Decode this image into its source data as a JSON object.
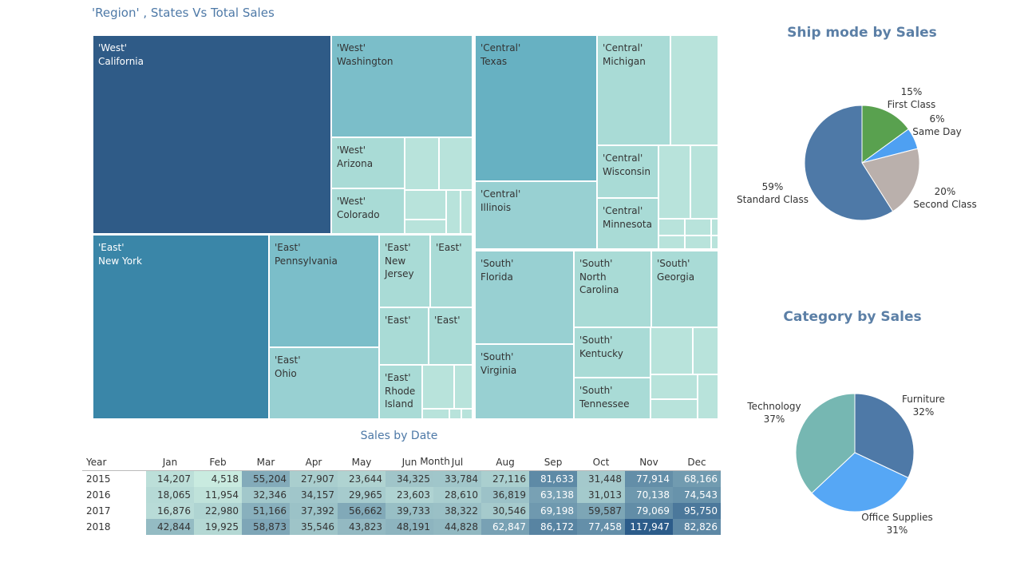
{
  "treemap": {
    "title": "'Region' , States Vs Total Sales",
    "colors": {
      "dark": "#2f5b87",
      "mid": "#3a86a8",
      "teal": "#67b1c2",
      "med": "#7bbec9",
      "light": "#98d0d2",
      "pale": "#a9dbd6",
      "palest": "#b8e3db"
    },
    "cells": [
      {
        "region": "'West'",
        "state": "California",
        "shade": "dark"
      },
      {
        "region": "'West'",
        "state": "Washington",
        "shade": "med"
      },
      {
        "region": "'West'",
        "state": "Arizona",
        "shade": "pale"
      },
      {
        "region": "'West'",
        "state": "Colorado",
        "shade": "pale"
      },
      {
        "region": "'East'",
        "state": "New York",
        "shade": "mid"
      },
      {
        "region": "'East'",
        "state": "Pennsylvania",
        "shade": "med"
      },
      {
        "region": "'East'",
        "state": "Ohio",
        "shade": "light"
      },
      {
        "region": "'East'",
        "state": "New\nJersey",
        "shade": "pale"
      },
      {
        "region": "'East'",
        "state": "",
        "shade": "pale"
      },
      {
        "region": "'East'",
        "state": "",
        "shade": "pale"
      },
      {
        "region": "'East'",
        "state": "",
        "shade": "pale"
      },
      {
        "region": "'East'",
        "state": "Rhode\nIsland",
        "shade": "pale"
      },
      {
        "region": "'Central'",
        "state": "Texas",
        "shade": "teal"
      },
      {
        "region": "'Central'",
        "state": "Illinois",
        "shade": "light"
      },
      {
        "region": "'Central'",
        "state": "Michigan",
        "shade": "pale"
      },
      {
        "region": "'Central'",
        "state": "Wisconsin",
        "shade": "pale"
      },
      {
        "region": "'Central'",
        "state": "Minnesota",
        "shade": "pale"
      },
      {
        "region": "'South'",
        "state": "Florida",
        "shade": "light"
      },
      {
        "region": "'South'",
        "state": "Virginia",
        "shade": "light"
      },
      {
        "region": "'South'",
        "state": "North\nCarolina",
        "shade": "pale"
      },
      {
        "region": "'South'",
        "state": "Georgia",
        "shade": "pale"
      },
      {
        "region": "'South'",
        "state": "Kentucky",
        "shade": "pale"
      },
      {
        "region": "'South'",
        "state": "Tennessee",
        "shade": "pale"
      }
    ]
  },
  "ship_mode": {
    "title": "Ship mode by Sales",
    "slices": [
      {
        "name": "First Class",
        "pct": 15,
        "label": "15%",
        "color": "#59a14f"
      },
      {
        "name": "Same Day",
        "pct": 6,
        "label": "6%",
        "color": "#4ea0f2"
      },
      {
        "name": "Second Class",
        "pct": 20,
        "label": "20%",
        "color": "#bab0ac"
      },
      {
        "name": "Standard Class",
        "pct": 59,
        "label": "59%",
        "color": "#4e79a7"
      }
    ]
  },
  "category": {
    "title": "Category by  Sales",
    "slices": [
      {
        "name": "Furniture",
        "pct": 32,
        "label": "32%",
        "color": "#4e79a7"
      },
      {
        "name": "Office Supplies",
        "pct": 31,
        "label": "31%",
        "color": "#56a7f5"
      },
      {
        "name": "Technology",
        "pct": 37,
        "label": "37%",
        "color": "#76b7b2"
      }
    ]
  },
  "heatmap": {
    "title": "Sales by Date",
    "column_header": "Month",
    "row_header": "Year",
    "months": [
      "Jan",
      "Feb",
      "Mar",
      "Apr",
      "May",
      "Jun",
      "Jul",
      "Aug",
      "Sep",
      "Oct",
      "Nov",
      "Dec"
    ],
    "rows": [
      {
        "year": "2015",
        "values": [
          14207,
          4518,
          55204,
          27907,
          23644,
          34325,
          33784,
          27116,
          81633,
          31448,
          77914,
          68166
        ]
      },
      {
        "year": "2016",
        "values": [
          18065,
          11954,
          32346,
          34157,
          29965,
          23603,
          28610,
          36819,
          63138,
          31013,
          70138,
          74543
        ]
      },
      {
        "year": "2017",
        "values": [
          16876,
          22980,
          51166,
          37392,
          56662,
          39733,
          38322,
          30546,
          69198,
          59587,
          79069,
          95750
        ]
      },
      {
        "year": "2018",
        "values": [
          42844,
          19925,
          58873,
          35546,
          43823,
          48191,
          44828,
          62847,
          86172,
          77458,
          117947,
          82826
        ]
      }
    ],
    "color_low": "#c9ebe0",
    "color_high": "#2c5c8a"
  },
  "chart_data": [
    {
      "type": "heatmap",
      "title": "Sales by Date",
      "xlabel": "Month",
      "ylabel": "Year",
      "x": [
        "Jan",
        "Feb",
        "Mar",
        "Apr",
        "May",
        "Jun",
        "Jul",
        "Aug",
        "Sep",
        "Oct",
        "Nov",
        "Dec"
      ],
      "y": [
        "2015",
        "2016",
        "2017",
        "2018"
      ],
      "values": [
        [
          14207,
          4518,
          55204,
          27907,
          23644,
          34325,
          33784,
          27116,
          81633,
          31448,
          77914,
          68166
        ],
        [
          18065,
          11954,
          32346,
          34157,
          29965,
          23603,
          28610,
          36819,
          63138,
          31013,
          70138,
          74543
        ],
        [
          16876,
          22980,
          51166,
          37392,
          56662,
          39733,
          38322,
          30546,
          69198,
          59587,
          79069,
          95750
        ],
        [
          42844,
          19925,
          58873,
          35546,
          43823,
          48191,
          44828,
          62847,
          86172,
          77458,
          117947,
          82826
        ]
      ]
    },
    {
      "type": "pie",
      "title": "Ship mode by Sales",
      "categories": [
        "First Class",
        "Same Day",
        "Second Class",
        "Standard Class"
      ],
      "values": [
        15,
        6,
        20,
        59
      ]
    },
    {
      "type": "pie",
      "title": "Category by  Sales",
      "categories": [
        "Furniture",
        "Office Supplies",
        "Technology"
      ],
      "values": [
        32,
        31,
        37
      ]
    }
  ]
}
